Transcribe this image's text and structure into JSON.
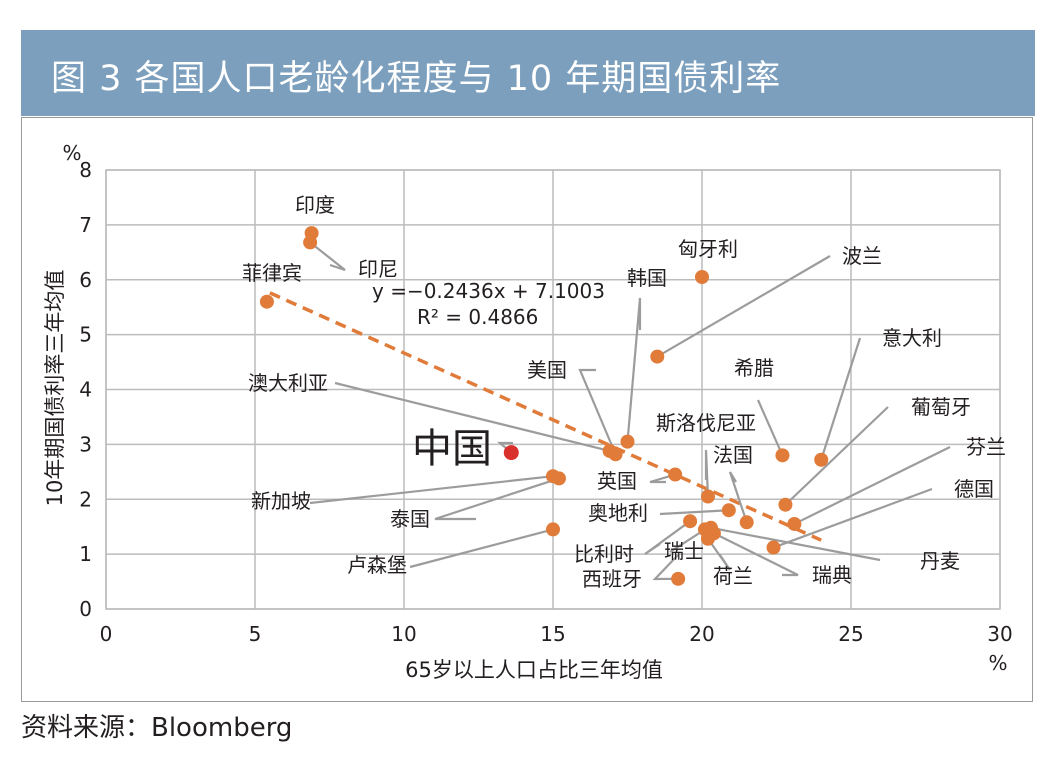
{
  "title": "图 3    各国人口老龄化程度与 10 年期国债利率",
  "source": "资料来源：Bloomberg",
  "chart_data": {
    "type": "scatter",
    "xlabel": "65岁以上人口占比三年均值",
    "ylabel": "10年期国债利率三年均值",
    "x_unit": "%",
    "y_unit": "%",
    "xlim": [
      0,
      30
    ],
    "ylim": [
      0,
      8
    ],
    "x_ticks": [
      "0",
      "5",
      "10",
      "15",
      "20",
      "25",
      "30"
    ],
    "y_ticks": [
      "0",
      "1",
      "2",
      "3",
      "4",
      "5",
      "6",
      "7",
      "8"
    ],
    "grid": true,
    "point_color": "#e07b39",
    "highlight_color": "#d9302c",
    "trendline": {
      "equation": "y =−0.2436x + 7.1003",
      "r2": "R² = 0.4866",
      "slope": -0.2436,
      "intercept": 7.1003,
      "x_range": [
        5.5,
        24
      ],
      "color": "#e07b39"
    },
    "points": [
      {
        "label": "印度",
        "x": 6.9,
        "y": 6.85
      },
      {
        "label": "印尼",
        "x": 6.85,
        "y": 6.68
      },
      {
        "label": "菲律宾",
        "x": 5.4,
        "y": 5.6
      },
      {
        "label": "匈牙利",
        "x": 20.0,
        "y": 6.05
      },
      {
        "label": "韩国",
        "x": 17.5,
        "y": 3.05
      },
      {
        "label": "波兰",
        "x": 18.5,
        "y": 4.6
      },
      {
        "label": "美国",
        "x": 17.1,
        "y": 2.82
      },
      {
        "label": "澳大利亚",
        "x": 16.9,
        "y": 2.88
      },
      {
        "label": "中国",
        "x": 13.6,
        "y": 2.85,
        "highlight": true
      },
      {
        "label": "意大利",
        "x": 24.0,
        "y": 2.72
      },
      {
        "label": "希腊",
        "x": 22.7,
        "y": 2.8
      },
      {
        "label": "葡萄牙",
        "x": 22.8,
        "y": 1.9
      },
      {
        "label": "芬兰",
        "x": 23.1,
        "y": 1.55
      },
      {
        "label": "德国",
        "x": 22.4,
        "y": 1.12
      },
      {
        "label": "斯洛伐尼亚",
        "x": 20.2,
        "y": 2.05
      },
      {
        "label": "法国",
        "x": 21.5,
        "y": 1.58
      },
      {
        "label": "英国",
        "x": 19.1,
        "y": 2.45
      },
      {
        "label": "新加坡",
        "x": 15.0,
        "y": 2.42
      },
      {
        "label": "泰国",
        "x": 15.2,
        "y": 2.38
      },
      {
        "label": "卢森堡",
        "x": 15.0,
        "y": 1.45
      },
      {
        "label": "奥地利",
        "x": 20.9,
        "y": 1.8
      },
      {
        "label": "比利时",
        "x": 19.6,
        "y": 1.6
      },
      {
        "label": "瑞士",
        "x": 20.1,
        "y": 1.45
      },
      {
        "label": "西班牙",
        "x": 19.2,
        "y": 0.55
      },
      {
        "label": "荷兰",
        "x": 20.2,
        "y": 1.28
      },
      {
        "label": "瑞典",
        "x": 20.4,
        "y": 1.38
      },
      {
        "label": "丹麦",
        "x": 20.3,
        "y": 1.48
      }
    ]
  }
}
